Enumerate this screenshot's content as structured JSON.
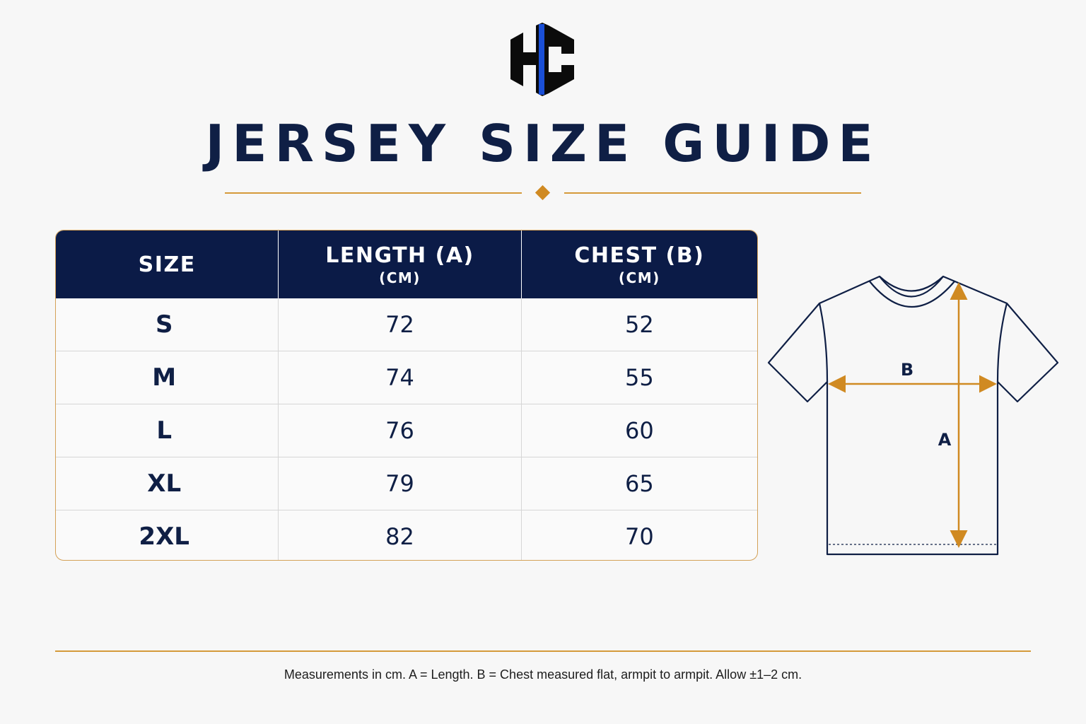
{
  "logo": {
    "text": "HC",
    "accent_color": "#1a4fd6"
  },
  "title": "JERSEY SIZE GUIDE",
  "table": {
    "headers": [
      {
        "label": "SIZE",
        "unit": ""
      },
      {
        "label": "LENGTH (A)",
        "unit": "(CM)"
      },
      {
        "label": "CHEST (B)",
        "unit": "(CM)"
      }
    ],
    "rows": [
      {
        "size": "S",
        "length": "72",
        "chest": "52"
      },
      {
        "size": "M",
        "length": "74",
        "chest": "55"
      },
      {
        "size": "L",
        "length": "76",
        "chest": "60"
      },
      {
        "size": "XL",
        "length": "79",
        "chest": "65"
      },
      {
        "size": "2XL",
        "length": "82",
        "chest": "70"
      }
    ]
  },
  "diagram": {
    "label_b": "B",
    "label_a": "A"
  },
  "colors": {
    "navy": "#0b1b47",
    "gold": "#d08a22"
  },
  "footnote": "Measurements in cm. A = Length. B = Chest measured flat, armpit to armpit. Allow ±1–2 cm."
}
